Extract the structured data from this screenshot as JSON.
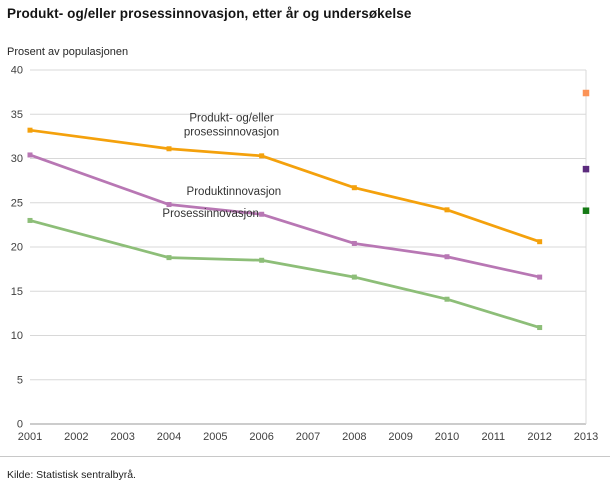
{
  "title": "Produkt- og/eller prosessinnovasjon, etter år og undersøkelse",
  "y_axis_title": "Prosent av populasjonen",
  "source": "Kilde: Statistisk sentralbyrå.",
  "chart_data": {
    "type": "line",
    "x": [
      2001,
      2004,
      2006,
      2008,
      2010,
      2012
    ],
    "x_ticks": [
      2001,
      2002,
      2003,
      2004,
      2005,
      2006,
      2007,
      2008,
      2009,
      2010,
      2011,
      2012,
      2013
    ],
    "y_ticks": [
      0,
      5,
      10,
      15,
      20,
      25,
      30,
      35,
      40
    ],
    "xlim": [
      2001,
      2013
    ],
    "ylim": [
      0,
      40
    ],
    "grid_on": true,
    "grid_color": "#d8d8d8",
    "axis_color": "#999999",
    "tick_label_color": "#404040",
    "annotation_color": "#333333",
    "series": [
      {
        "name": "Produkt- og/eller prosessinnovasjon",
        "color": "#f4a10c",
        "values": [
          33.2,
          31.1,
          30.3,
          26.7,
          24.2,
          20.6
        ]
      },
      {
        "name": "Produktinnovasjon",
        "color": "#b877b4",
        "values": [
          30.4,
          24.8,
          23.7,
          20.4,
          18.9,
          16.6
        ]
      },
      {
        "name": "Prosessinnovasjon",
        "color": "#8dbe78",
        "values": [
          23.0,
          18.8,
          18.5,
          16.6,
          14.1,
          10.9
        ]
      }
    ],
    "survey_2013_points": [
      {
        "series": "Produkt- og/eller prosessinnovasjon",
        "x": 2013,
        "value": 37.4,
        "color": "#fb9357"
      },
      {
        "series": "Produktinnovasjon",
        "x": 2013,
        "value": 28.8,
        "color": "#5b2a7d"
      },
      {
        "series": "Prosessinnovasjon",
        "x": 2013,
        "value": 24.1,
        "color": "#157a15"
      }
    ],
    "annotations": [
      {
        "lines": [
          "Produkt- og/eller",
          "prosessinnovasjon"
        ],
        "x": 2005.35,
        "y": 34.2
      },
      {
        "lines": [
          "Produktinnovasjon"
        ],
        "x": 2005.4,
        "y": 25.9
      },
      {
        "lines": [
          "Prosessinnovasjon"
        ],
        "x": 2004.9,
        "y": 23.4
      }
    ]
  }
}
